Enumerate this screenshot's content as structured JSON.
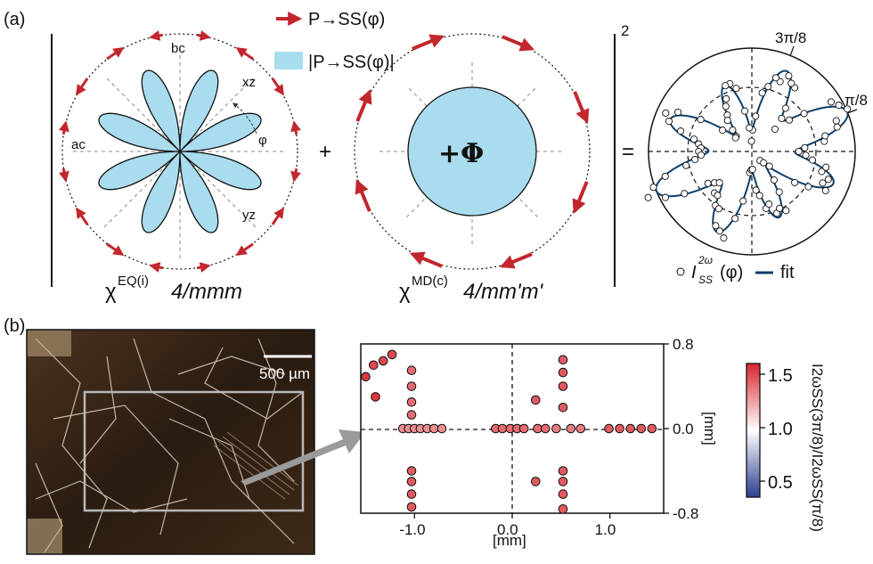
{
  "panel_a": {
    "label": "(a)",
    "legend": {
      "arrow_label": "P→SS(φ)",
      "area_label": "|P→SS(φ)|"
    },
    "left": {
      "axis_labels": {
        "bc": "bc",
        "xz": "xz",
        "ac": "ac",
        "yz": "yz",
        "phi": "φ"
      },
      "susceptibility": "χ",
      "susceptibility_sup": "EQ(i)",
      "point_group": "4/mmm"
    },
    "plus_sign": "+",
    "middle": {
      "center_symbol": "+Φ",
      "susceptibility": "χ",
      "susceptibility_sup": "MD(c)",
      "point_group": "4/mm'm'"
    },
    "equals_sign": "=",
    "right": {
      "scale_max": "2",
      "angle_labels": [
        "3π/8",
        "π/8"
      ],
      "legend_data": "I",
      "legend_data_sup": "2ω",
      "legend_data_sub": "SS",
      "legend_data_arg": "(φ)",
      "legend_fit": "fit"
    },
    "colors": {
      "arrow": "#c1272d",
      "fill": "#a9dcee",
      "fit": "#0b3d6b"
    }
  },
  "panel_b": {
    "label": "(b)",
    "scale_bar": "500 µm",
    "colorbar": {
      "ticks": [
        "1.5",
        "1.0",
        "0.5"
      ],
      "label": "I2ωSS(3π/8)/I2ωSS(π/8)",
      "min": 0.35,
      "max": 1.6,
      "low_color": "#2c3e91",
      "mid_color": "#ffffff",
      "high_color": "#d7262d"
    }
  },
  "chart_data": {
    "type": "scatter",
    "xlabel": "[mm]",
    "ylabel": "[mm]",
    "xlim": [
      -1.55,
      1.55
    ],
    "ylim": [
      -0.8,
      0.8
    ],
    "xticks": [
      "-1.0",
      "0.0",
      "1.0"
    ],
    "yticks": [
      "0.8",
      "0.0",
      "-0.8"
    ],
    "points": [
      {
        "x": -1.5,
        "y": 0.49,
        "v": 1.55
      },
      {
        "x": -1.42,
        "y": 0.6,
        "v": 1.5
      },
      {
        "x": -1.32,
        "y": 0.64,
        "v": 1.5
      },
      {
        "x": -1.23,
        "y": 0.7,
        "v": 1.5
      },
      {
        "x": -1.4,
        "y": 0.3,
        "v": 1.55
      },
      {
        "x": -1.03,
        "y": 0.55,
        "v": 1.4
      },
      {
        "x": -1.03,
        "y": 0.4,
        "v": 1.4
      },
      {
        "x": -1.03,
        "y": 0.25,
        "v": 1.4
      },
      {
        "x": -1.03,
        "y": 0.13,
        "v": 1.4
      },
      {
        "x": -1.03,
        "y": -0.4,
        "v": 1.45
      },
      {
        "x": -1.03,
        "y": -0.5,
        "v": 1.45
      },
      {
        "x": -1.03,
        "y": -0.62,
        "v": 1.45
      },
      {
        "x": -1.03,
        "y": -0.74,
        "v": 1.45
      },
      {
        "x": -1.12,
        "y": 0.0,
        "v": 1.3
      },
      {
        "x": -1.06,
        "y": 0.0,
        "v": 1.3
      },
      {
        "x": -1.0,
        "y": 0.0,
        "v": 1.3
      },
      {
        "x": -0.94,
        "y": 0.0,
        "v": 1.3
      },
      {
        "x": -0.87,
        "y": 0.0,
        "v": 1.3
      },
      {
        "x": -0.8,
        "y": 0.0,
        "v": 1.3
      },
      {
        "x": -0.72,
        "y": 0.0,
        "v": 1.3
      },
      {
        "x": -0.17,
        "y": 0.0,
        "v": 1.4
      },
      {
        "x": -0.1,
        "y": 0.0,
        "v": 1.4
      },
      {
        "x": -0.02,
        "y": 0.0,
        "v": 1.4
      },
      {
        "x": 0.05,
        "y": 0.0,
        "v": 1.4
      },
      {
        "x": 0.12,
        "y": 0.0,
        "v": 1.4
      },
      {
        "x": 0.26,
        "y": 0.0,
        "v": 1.4
      },
      {
        "x": 0.34,
        "y": 0.0,
        "v": 1.4
      },
      {
        "x": 0.24,
        "y": 0.27,
        "v": 1.45
      },
      {
        "x": 0.24,
        "y": -0.5,
        "v": 1.45
      },
      {
        "x": 0.52,
        "y": 0.65,
        "v": 1.45
      },
      {
        "x": 0.52,
        "y": 0.53,
        "v": 1.45
      },
      {
        "x": 0.52,
        "y": 0.4,
        "v": 1.45
      },
      {
        "x": 0.52,
        "y": 0.2,
        "v": 1.45
      },
      {
        "x": 0.52,
        "y": -0.4,
        "v": 1.45
      },
      {
        "x": 0.52,
        "y": -0.5,
        "v": 1.45
      },
      {
        "x": 0.52,
        "y": -0.62,
        "v": 1.45
      },
      {
        "x": 0.52,
        "y": -0.76,
        "v": 1.45
      },
      {
        "x": 0.45,
        "y": 0.0,
        "v": 1.35
      },
      {
        "x": 0.6,
        "y": 0.0,
        "v": 1.35
      },
      {
        "x": 0.7,
        "y": 0.0,
        "v": 1.35
      },
      {
        "x": 0.99,
        "y": 0.0,
        "v": 1.45
      },
      {
        "x": 1.1,
        "y": 0.0,
        "v": 1.45
      },
      {
        "x": 1.21,
        "y": 0.0,
        "v": 1.45
      },
      {
        "x": 1.32,
        "y": 0.0,
        "v": 1.45
      },
      {
        "x": 1.43,
        "y": 0.0,
        "v": 1.45
      }
    ]
  }
}
